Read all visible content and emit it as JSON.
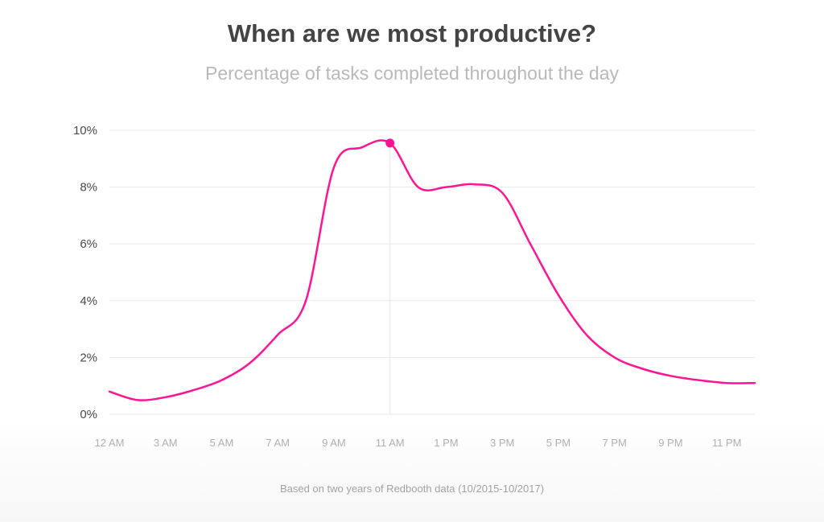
{
  "header": {
    "title": "When are we most productive?",
    "subtitle": "Percentage of tasks completed throughout the day"
  },
  "footnote": "Based on two years of Redbooth data (10/2015-10/2017)",
  "colors": {
    "line": "#ff1493",
    "grid": "#e8e8e8",
    "highlight": "#ff1493"
  },
  "chart_data": {
    "type": "line",
    "title": "When are we most productive?",
    "subtitle": "Percentage of tasks completed throughout the day",
    "ylim": [
      0,
      10
    ],
    "yticks": [
      0,
      2,
      4,
      6,
      8,
      10
    ],
    "ytick_labels": [
      "0%",
      "2%",
      "4%",
      "6%",
      "8%",
      "10%"
    ],
    "x_range": [
      0,
      23
    ],
    "xticks": [
      0,
      2,
      4,
      6,
      8,
      10,
      12,
      14,
      16,
      18,
      20,
      22
    ],
    "xtick_labels": [
      "12 AM",
      "3 AM",
      "5 AM",
      "7 AM",
      "9 AM",
      "11 AM",
      "1 PM",
      "3 PM",
      "5 PM",
      "7 PM",
      "9 PM",
      "11 PM"
    ],
    "grid": "horizontal",
    "highlight": {
      "x": 10,
      "y": 9.55
    },
    "series": [
      {
        "x": [
          0,
          1,
          2,
          3,
          4,
          5,
          6,
          7,
          8,
          9,
          10,
          11,
          12,
          13,
          14,
          15,
          16,
          17,
          18,
          19,
          20,
          21,
          22,
          23
        ],
        "values": [
          0.8,
          0.5,
          0.6,
          0.85,
          1.2,
          1.8,
          2.8,
          4.0,
          8.7,
          9.4,
          9.55,
          8.0,
          8.0,
          8.1,
          7.8,
          6.0,
          4.2,
          2.8,
          2.0,
          1.6,
          1.35,
          1.2,
          1.1,
          1.1
        ]
      }
    ]
  }
}
